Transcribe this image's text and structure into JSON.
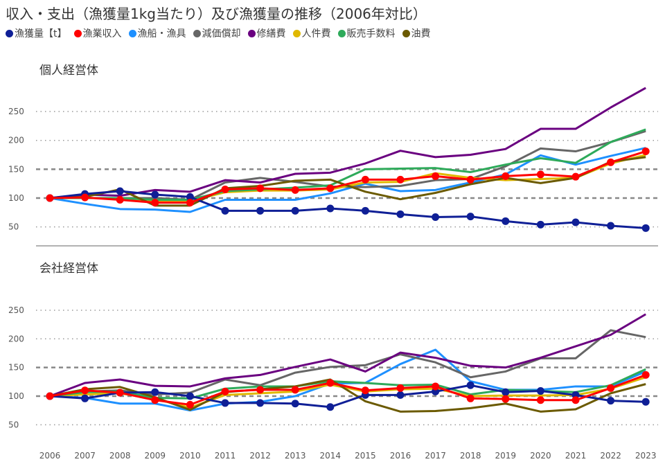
{
  "title": "収入・支出（漁獲量1kg当たり）及び漁獲量の推移（2006年対比）",
  "chart_data": [
    {
      "type": "line",
      "title": "個人経営体",
      "categories": [
        "2006",
        "2007",
        "2008",
        "2009",
        "2010",
        "2011",
        "2012",
        "2013",
        "2014",
        "2015",
        "2016",
        "2017",
        "2018",
        "2019",
        "2020",
        "2021",
        "2022",
        "2023"
      ],
      "yticks": [
        50,
        100,
        150,
        200,
        250
      ],
      "grid": true,
      "legend": "top",
      "series": [
        {
          "name": "漁獲量【t】",
          "color": "#0f1f96",
          "markers": true,
          "values": [
            100,
            107,
            112,
            106,
            102,
            78,
            78,
            78,
            82,
            78,
            72,
            67,
            68,
            60,
            54,
            58,
            52,
            48
          ]
        },
        {
          "name": "漁業収入",
          "color": "#ff0000",
          "markers": true,
          "values": [
            100,
            101,
            97,
            92,
            92,
            115,
            117,
            114,
            117,
            132,
            132,
            138,
            132,
            138,
            141,
            137,
            162,
            181
          ]
        },
        {
          "name": "漁船・漁具",
          "color": "#1e90ff",
          "markers": false,
          "values": [
            100,
            90,
            81,
            80,
            76,
            97,
            97,
            97,
            108,
            125,
            112,
            114,
            127,
            141,
            174,
            158,
            173,
            187
          ]
        },
        {
          "name": "減価償却",
          "color": "#666666",
          "markers": false,
          "values": [
            100,
            100,
            100,
            100,
            97,
            127,
            135,
            128,
            120,
            119,
            121,
            131,
            133,
            155,
            186,
            181,
            197,
            216
          ]
        },
        {
          "name": "修繕費",
          "color": "#6a0080",
          "markers": false,
          "values": [
            100,
            106,
            104,
            114,
            111,
            131,
            127,
            142,
            144,
            160,
            182,
            171,
            175,
            185,
            220,
            220,
            257,
            291
          ]
        },
        {
          "name": "人件費",
          "color": "#e0b800",
          "markers": false,
          "values": [
            100,
            100,
            100,
            95,
            95,
            110,
            113,
            113,
            115,
            127,
            128,
            143,
            135,
            131,
            133,
            135,
            160,
            175
          ]
        },
        {
          "name": "販売手数料",
          "color": "#2eaa5a",
          "markers": false,
          "values": [
            100,
            100,
            100,
            97,
            97,
            112,
            115,
            118,
            122,
            150,
            151,
            152,
            145,
            158,
            169,
            161,
            197,
            219
          ]
        },
        {
          "name": "油費",
          "color": "#6b5a00",
          "markers": false,
          "values": [
            100,
            102,
            115,
            87,
            87,
            117,
            121,
            130,
            132,
            111,
            98,
            109,
            124,
            135,
            126,
            135,
            163,
            171
          ]
        }
      ]
    },
    {
      "type": "line",
      "title": "会社経営体",
      "categories": [
        "2006",
        "2007",
        "2008",
        "2009",
        "2010",
        "2011",
        "2012",
        "2013",
        "2014",
        "2015",
        "2016",
        "2017",
        "2018",
        "2019",
        "2020",
        "2021",
        "2022",
        "2023"
      ],
      "yticks": [
        50,
        100,
        150,
        200,
        250
      ],
      "grid": true,
      "series": [
        {
          "name": "漁獲量【t】",
          "color": "#0f1f96",
          "markers": true,
          "values": [
            100,
            96,
            106,
            107,
            100,
            88,
            88,
            87,
            81,
            102,
            102,
            108,
            119,
            107,
            109,
            102,
            92,
            90
          ]
        },
        {
          "name": "漁業収入",
          "color": "#ff0000",
          "markers": true,
          "values": [
            100,
            110,
            106,
            93,
            85,
            108,
            111,
            111,
            123,
            110,
            114,
            117,
            96,
            95,
            93,
            93,
            114,
            137
          ]
        },
        {
          "name": "漁船・漁具",
          "color": "#1e90ff",
          "markers": false,
          "values": [
            100,
            97,
            87,
            87,
            75,
            87,
            90,
            100,
            122,
            123,
            156,
            181,
            126,
            111,
            111,
            117,
            117,
            143
          ]
        },
        {
          "name": "減価償却",
          "color": "#666666",
          "markers": false,
          "values": [
            100,
            108,
            110,
            103,
            106,
            129,
            119,
            141,
            151,
            154,
            173,
            159,
            133,
            143,
            166,
            166,
            215,
            203
          ]
        },
        {
          "name": "修繕費",
          "color": "#6a0080",
          "markers": false,
          "values": [
            100,
            123,
            129,
            118,
            117,
            131,
            137,
            151,
            164,
            143,
            176,
            167,
            153,
            150,
            167,
            187,
            207,
            243
          ]
        },
        {
          "name": "人件費",
          "color": "#e0b800",
          "markers": false,
          "values": [
            100,
            103,
            105,
            95,
            80,
            102,
            105,
            108,
            120,
            108,
            112,
            113,
            100,
            101,
            101,
            102,
            113,
            133
          ]
        },
        {
          "name": "販売手数料",
          "color": "#2eaa5a",
          "markers": false,
          "values": [
            100,
            107,
            108,
            97,
            96,
            113,
            117,
            117,
            126,
            123,
            119,
            120,
            103,
            111,
            109,
            107,
            119,
            147
          ]
        },
        {
          "name": "油費",
          "color": "#6b5a00",
          "markers": false,
          "values": [
            100,
            112,
            116,
            98,
            76,
            107,
            112,
            117,
            129,
            91,
            73,
            74,
            79,
            87,
            73,
            77,
            105,
            121
          ]
        }
      ]
    }
  ]
}
